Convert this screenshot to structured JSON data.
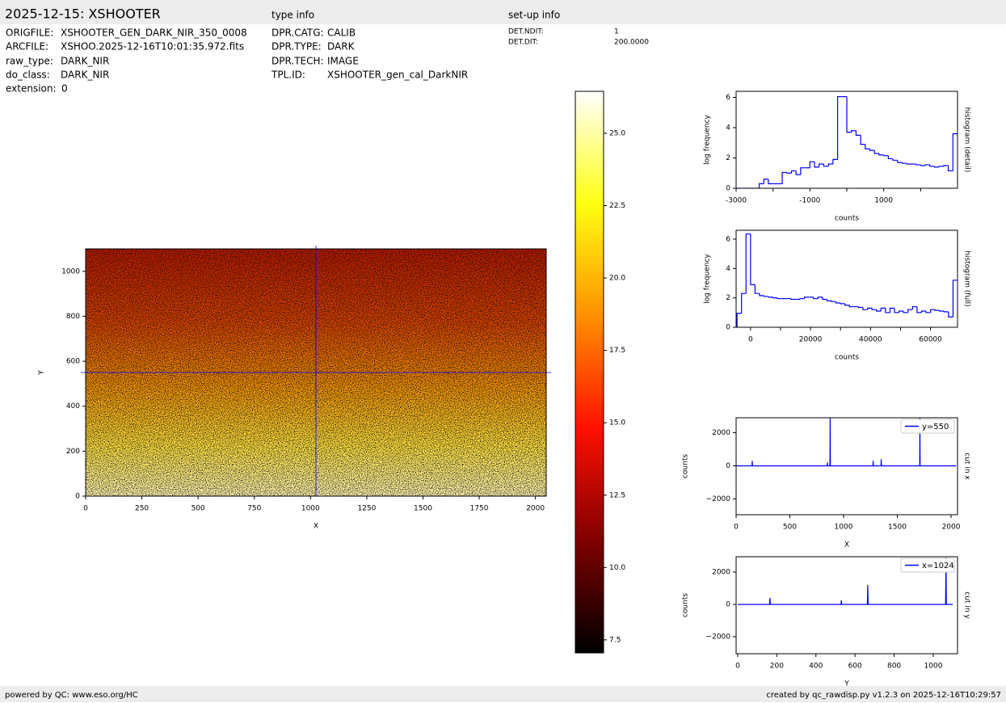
{
  "header": {
    "title": "2025-12-15: XSHOOTER",
    "type_info_title": "type info",
    "setup_info_title": "set-up info",
    "file_info": [
      [
        "ORIGFILE:",
        "XSHOOTER_GEN_DARK_NIR_350_0008"
      ],
      [
        "ARCFILE:",
        "XSHOO.2025-12-16T10:01:35.972.fits"
      ],
      [
        "raw_type:",
        "DARK_NIR"
      ],
      [
        "do_class:",
        "DARK_NIR"
      ],
      [
        "extension:",
        "0"
      ]
    ],
    "type_info": [
      [
        "DPR.CATG:",
        "CALIB"
      ],
      [
        "DPR.TYPE:",
        "DARK"
      ],
      [
        "DPR.TECH:",
        "IMAGE"
      ],
      [
        "TPL.ID:",
        "XSHOOTER_gen_cal_DarkNIR"
      ]
    ],
    "setup_info": [
      [
        "DET.NDIT:",
        "1"
      ],
      [
        "DET.DIT:",
        "200.0000"
      ]
    ]
  },
  "footer": {
    "left": "powered by QC: www.eso.org/HC",
    "right": "created by qc_rawdisp.py v1.2.3 on 2025-12-16T10:29:57"
  },
  "chart_data": [
    {
      "type": "image",
      "xlabel": "X",
      "ylabel": "Y",
      "xlim": [
        0,
        2048
      ],
      "ylim": [
        0,
        1100
      ],
      "xticks": [
        0,
        250,
        500,
        750,
        1000,
        1250,
        1500,
        1750,
        2000
      ],
      "yticks": [
        0,
        200,
        400,
        600,
        800,
        1000
      ],
      "crosshair_x": 1024,
      "crosshair_y": 550,
      "crosshair_color": "#0000ff"
    },
    {
      "type": "colorbar",
      "ylim": [
        7.05,
        26.45
      ],
      "yticks": [
        {
          "value": 7.5,
          "label": "7.5"
        },
        {
          "value": 10,
          "label": "10.0"
        },
        {
          "value": 12.5,
          "label": "12.5"
        },
        {
          "value": 15,
          "label": "15.0"
        },
        {
          "value": 17.5,
          "label": "17.5"
        },
        {
          "value": 20,
          "label": "20.0"
        },
        {
          "value": 22.5,
          "label": "22.5"
        },
        {
          "value": 25,
          "label": "25.0"
        }
      ],
      "colormap": [
        "#000000",
        "#800000",
        "#ff1000",
        "#ff9000",
        "#ffff10",
        "#ffffff"
      ]
    },
    {
      "type": "histogram",
      "xlabel": "counts",
      "ylabel": "log frequency",
      "side_label": "histogram (detail)",
      "color": "#0000ff",
      "xlim": [
        -3000,
        3000
      ],
      "ylim": [
        0,
        6.4
      ],
      "xticks": [
        -3000,
        -1000,
        1000
      ],
      "xminorticks": [
        -2000,
        0,
        2000
      ],
      "yticks": [
        0,
        2,
        4,
        6
      ],
      "bins": [
        -3000,
        -2875,
        -2750,
        -2625,
        -2500,
        -2375,
        -2250,
        -2125,
        -2000,
        -1875,
        -1750,
        -1625,
        -1500,
        -1375,
        -1250,
        -1125,
        -1000,
        -875,
        -750,
        -625,
        -500,
        -375,
        -250,
        -125,
        0,
        125,
        250,
        375,
        500,
        625,
        750,
        875,
        1000,
        1125,
        1250,
        1375,
        1500,
        1625,
        1750,
        1875,
        2000,
        2125,
        2250,
        2375,
        2500,
        2625,
        2750,
        2875,
        3000
      ],
      "values": [
        0,
        0,
        0,
        0,
        0,
        0.3,
        0.6,
        0.3,
        0.3,
        0.3,
        1.05,
        1.0,
        1.15,
        0.9,
        1.35,
        1.35,
        1.75,
        1.4,
        1.6,
        1.45,
        1.6,
        1.9,
        6.05,
        6.05,
        3.7,
        3.8,
        3.5,
        2.9,
        2.6,
        2.5,
        2.3,
        2.2,
        2.15,
        1.95,
        1.85,
        1.7,
        1.65,
        1.6,
        1.6,
        1.55,
        1.5,
        1.55,
        1.45,
        1.4,
        1.45,
        1.5,
        1.15,
        3.6
      ]
    },
    {
      "type": "histogram",
      "xlabel": "counts",
      "ylabel": "log frequency",
      "side_label": "histogram (full)",
      "color": "#0000ff",
      "xlim": [
        -4800,
        69000
      ],
      "ylim": [
        0,
        6.6
      ],
      "xticks": [
        0,
        20000,
        40000,
        60000
      ],
      "xminorticks": [
        10000,
        30000,
        50000
      ],
      "yticks": [
        0,
        2,
        4,
        6
      ],
      "bins": [
        -4500,
        -3000,
        -1500,
        0,
        1500,
        3000,
        4500,
        6000,
        7500,
        9000,
        10500,
        12000,
        13500,
        15000,
        16500,
        18000,
        19500,
        21000,
        22500,
        24000,
        25500,
        27000,
        28500,
        30000,
        31500,
        33000,
        34500,
        36000,
        37500,
        39000,
        40500,
        42000,
        43500,
        45000,
        46500,
        48000,
        49500,
        51000,
        52500,
        54000,
        55500,
        57000,
        58500,
        60000,
        61500,
        63000,
        64500,
        66000,
        67500,
        69000
      ],
      "values": [
        0.95,
        2.3,
        6.35,
        2.9,
        2.3,
        2.15,
        2.1,
        2.05,
        2.0,
        1.95,
        1.95,
        1.95,
        1.9,
        1.9,
        1.95,
        2.05,
        2.05,
        1.95,
        2.05,
        1.9,
        1.8,
        1.75,
        1.65,
        1.6,
        1.5,
        1.4,
        1.4,
        1.35,
        1.2,
        1.3,
        1.2,
        1.1,
        1.3,
        1.0,
        1.3,
        1.0,
        1.1,
        1.0,
        1.2,
        1.4,
        1.0,
        1.1,
        1.0,
        1.2,
        1.15,
        1.1,
        1.05,
        0.7,
        3.2
      ]
    },
    {
      "type": "line",
      "xlabel": "X",
      "ylabel": "counts",
      "side_label": "cut in x",
      "xlim": [
        0,
        2060
      ],
      "ylim": [
        -2950,
        2900
      ],
      "xticks": [
        0,
        500,
        1000,
        1500,
        2000
      ],
      "yticks": [
        {
          "value": -2000,
          "label": "−2000"
        },
        0,
        2000
      ],
      "x": [
        0,
        148,
        150,
        152,
        848,
        850,
        852,
        873,
        875,
        877,
        1273,
        1275,
        1277,
        1348,
        1350,
        1352,
        1708,
        1710,
        1712,
        2048
      ],
      "series": [
        {
          "name": "y=550",
          "color": "#0000ff",
          "values": [
            0,
            0,
            300,
            0,
            0,
            200,
            0,
            0,
            2900,
            0,
            0,
            300,
            0,
            0,
            400,
            0,
            0,
            2900,
            0,
            0
          ]
        }
      ]
    },
    {
      "type": "line",
      "xlabel": "Y",
      "ylabel": "counts",
      "side_label": "cut in y",
      "xlim": [
        -8,
        1124
      ],
      "ylim": [
        -3050,
        2950
      ],
      "xticks": [
        0,
        200,
        400,
        600,
        800,
        1000
      ],
      "yticks": [
        {
          "value": -2000,
          "label": "−2000"
        },
        0,
        2000
      ],
      "x": [
        0,
        163,
        165,
        167,
        528,
        530,
        532,
        663,
        665,
        667,
        1063,
        1065,
        1067,
        1100
      ],
      "series": [
        {
          "name": "x=1024",
          "color": "#0000ff",
          "values": [
            0,
            0,
            400,
            0,
            0,
            250,
            0,
            0,
            1200,
            0,
            0,
            2900,
            0,
            0
          ]
        }
      ]
    }
  ]
}
